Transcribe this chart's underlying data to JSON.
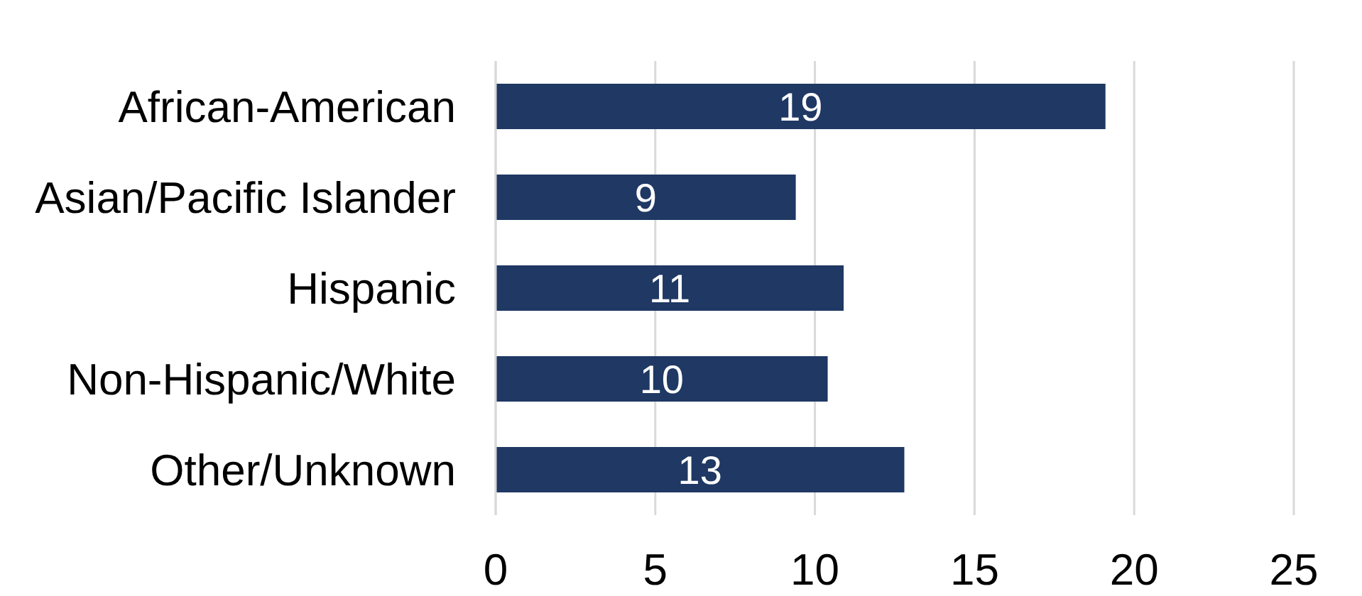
{
  "chart_data": {
    "type": "bar",
    "orientation": "horizontal",
    "categories": [
      "African-American",
      "Asian/Pacific Islander",
      "Hispanic",
      "Non-Hispanic/White",
      "Other/Unknown"
    ],
    "values": [
      19.1,
      9.4,
      10.9,
      10.4,
      12.8
    ],
    "value_labels": [
      "19",
      "9",
      "11",
      "10",
      "13"
    ],
    "color": "#1f3864",
    "xlim": [
      0,
      25
    ],
    "xticks": [
      0,
      5,
      10,
      15,
      20,
      25
    ],
    "grid": "x"
  }
}
